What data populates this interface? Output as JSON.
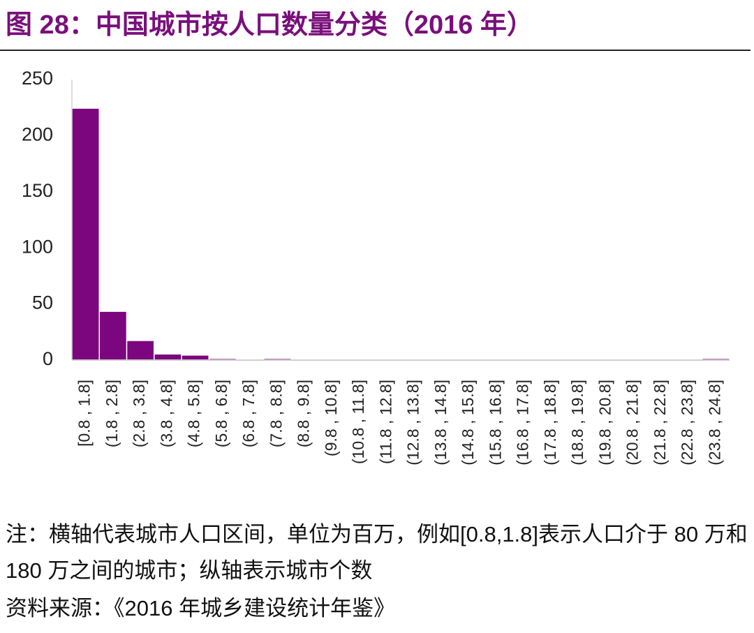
{
  "chart_data": {
    "type": "bar",
    "title": "图 28：中国城市按人口数量分类（2016 年）",
    "categories": [
      "[0.8 , 1.8]",
      "(1.8 , 2.8]",
      "(2.8 , 3.8]",
      "(3.8 , 4.8]",
      "(4.8 , 5.8]",
      "(5.8 , 6.8]",
      "(6.8 , 7.8]",
      "(7.8 , 8.8]",
      "(8.8 , 9.8]",
      "(9.8 , 10.8]",
      "(10.8 , 11.8]",
      "(11.8 , 12.8]",
      "(12.8 , 13.8]",
      "(13.8 , 14.8]",
      "(14.8 , 15.8]",
      "(15.8 , 16.8]",
      "(16.8 , 17.8]",
      "(17.8 , 18.8]",
      "(18.8 , 19.8]",
      "(19.8 , 20.8]",
      "(20.8 , 21.8]",
      "(21.8 , 22.8]",
      "(22.8 , 23.8]",
      "(23.8 , 24.8]"
    ],
    "values": [
      224,
      43,
      17,
      5,
      4,
      1,
      0,
      1,
      0,
      0,
      0,
      0,
      0,
      0,
      0,
      0,
      0,
      0,
      0,
      0,
      0,
      0,
      0,
      1
    ],
    "color": "#7b067e",
    "ylim": [
      0,
      250
    ],
    "yticks": [
      0,
      50,
      100,
      150,
      200,
      250
    ],
    "grid": false,
    "note": "注：横轴代表城市人口区间，单位为百万，例如[0.8,1.8]表示人口介于 80 万和 180 万之间的城市；纵轴表示城市个数",
    "source": "资料来源：《2016 年城乡建设统计年鉴》"
  }
}
